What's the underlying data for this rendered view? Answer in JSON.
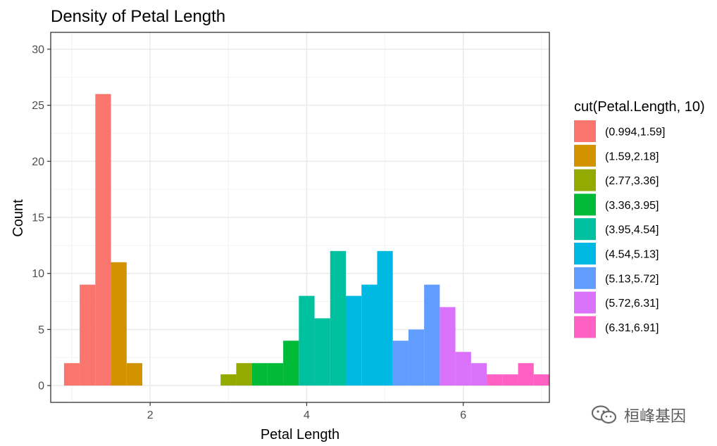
{
  "chart_data": {
    "type": "bar",
    "title": "Density of Petal Length",
    "xlabel": "Petal Length",
    "ylabel": "Count",
    "xlim": [
      0.73,
      7.1
    ],
    "ylim": [
      -1.5,
      31.5
    ],
    "xticks": [
      2,
      4,
      6
    ],
    "yticks": [
      0,
      5,
      10,
      15,
      20,
      25,
      30
    ],
    "grid": true,
    "legend_title": "cut(Petal.Length, 10)",
    "legend_position": "right",
    "series": [
      {
        "name": "(0.994,1.59]",
        "color": "#F8766D",
        "bars": [
          {
            "x0": 0.9,
            "x1": 1.1,
            "y": 2
          },
          {
            "x0": 1.1,
            "x1": 1.3,
            "y": 9
          },
          {
            "x0": 1.3,
            "x1": 1.5,
            "y": 26
          }
        ]
      },
      {
        "name": "(1.59,2.18]",
        "color": "#D39200",
        "bars": [
          {
            "x0": 1.5,
            "x1": 1.7,
            "y": 11
          },
          {
            "x0": 1.7,
            "x1": 1.9,
            "y": 2
          }
        ]
      },
      {
        "name": "(2.77,3.36]",
        "color": "#93AA00",
        "bars": [
          {
            "x0": 2.9,
            "x1": 3.1,
            "y": 1
          },
          {
            "x0": 3.1,
            "x1": 3.3,
            "y": 2
          }
        ]
      },
      {
        "name": "(3.36,3.95]",
        "color": "#00BA38",
        "bars": [
          {
            "x0": 3.3,
            "x1": 3.5,
            "y": 2
          },
          {
            "x0": 3.5,
            "x1": 3.7,
            "y": 2
          },
          {
            "x0": 3.7,
            "x1": 3.9,
            "y": 4
          }
        ]
      },
      {
        "name": "(3.95,4.54]",
        "color": "#00C19F",
        "bars": [
          {
            "x0": 3.9,
            "x1": 4.1,
            "y": 8
          },
          {
            "x0": 4.1,
            "x1": 4.3,
            "y": 6
          },
          {
            "x0": 4.3,
            "x1": 4.5,
            "y": 12
          }
        ]
      },
      {
        "name": "(4.54,5.13]",
        "color": "#00B9E3",
        "bars": [
          {
            "x0": 4.5,
            "x1": 4.7,
            "y": 8
          },
          {
            "x0": 4.7,
            "x1": 4.9,
            "y": 9
          },
          {
            "x0": 4.9,
            "x1": 5.1,
            "y": 12
          }
        ]
      },
      {
        "name": "(5.13,5.72]",
        "color": "#619CFF",
        "bars": [
          {
            "x0": 5.1,
            "x1": 5.3,
            "y": 4
          },
          {
            "x0": 5.3,
            "x1": 5.5,
            "y": 5
          },
          {
            "x0": 5.5,
            "x1": 5.7,
            "y": 9
          }
        ]
      },
      {
        "name": "(5.72,6.31]",
        "color": "#DB72FB",
        "bars": [
          {
            "x0": 5.7,
            "x1": 5.9,
            "y": 7
          },
          {
            "x0": 5.9,
            "x1": 6.1,
            "y": 3
          },
          {
            "x0": 6.1,
            "x1": 6.3,
            "y": 2
          }
        ]
      },
      {
        "name": "(6.31,6.91]",
        "color": "#FF61C3",
        "bars": [
          {
            "x0": 6.3,
            "x1": 6.5,
            "y": 1
          },
          {
            "x0": 6.5,
            "x1": 6.7,
            "y": 1
          },
          {
            "x0": 6.7,
            "x1": 6.9,
            "y": 2
          },
          {
            "x0": 6.9,
            "x1": 7.1,
            "y": 1
          }
        ]
      }
    ]
  },
  "watermark": {
    "icon": "wechat-icon",
    "text": "桓峰基因"
  }
}
